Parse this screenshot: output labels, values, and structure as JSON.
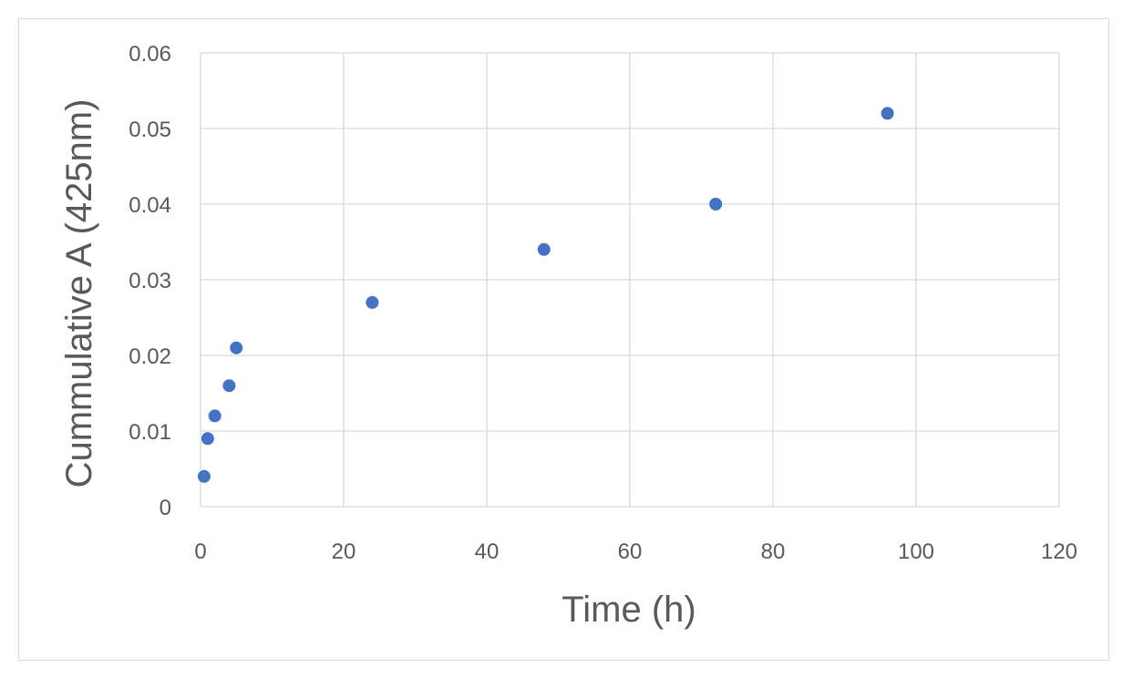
{
  "chart_data": {
    "type": "scatter",
    "title": "",
    "xlabel": "Time (h)",
    "ylabel": "Cummulative A (425nm)",
    "xlim": [
      0,
      120
    ],
    "ylim": [
      0,
      0.06
    ],
    "x_ticks": [
      "0",
      "20",
      "40",
      "60",
      "80",
      "100",
      "120"
    ],
    "y_ticks": [
      "0",
      "0.01",
      "0.02",
      "0.03",
      "0.04",
      "0.05",
      "0.06"
    ],
    "grid": true,
    "legend": "none",
    "marker_color": "#4472c4",
    "series": [
      {
        "points": [
          {
            "x": 0.5,
            "y": 0.004
          },
          {
            "x": 1,
            "y": 0.009
          },
          {
            "x": 2,
            "y": 0.012
          },
          {
            "x": 4,
            "y": 0.016
          },
          {
            "x": 5,
            "y": 0.021
          },
          {
            "x": 24,
            "y": 0.027
          },
          {
            "x": 48,
            "y": 0.034
          },
          {
            "x": 72,
            "y": 0.04
          },
          {
            "x": 96,
            "y": 0.052
          }
        ]
      }
    ]
  }
}
